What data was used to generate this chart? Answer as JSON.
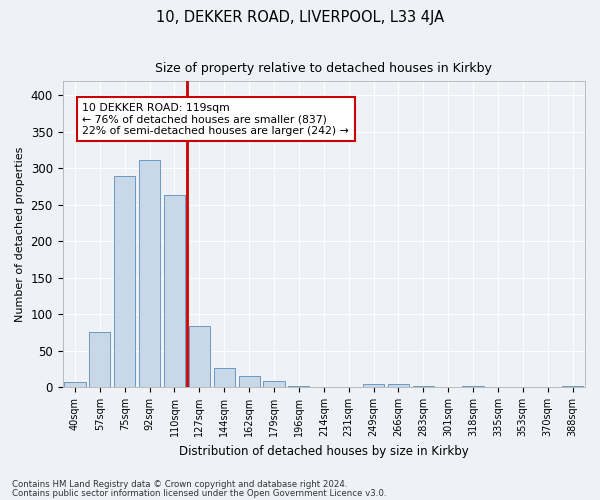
{
  "title": "10, DEKKER ROAD, LIVERPOOL, L33 4JA",
  "subtitle": "Size of property relative to detached houses in Kirkby",
  "xlabel": "Distribution of detached houses by size in Kirkby",
  "ylabel": "Number of detached properties",
  "bin_labels": [
    "40sqm",
    "57sqm",
    "75sqm",
    "92sqm",
    "110sqm",
    "127sqm",
    "144sqm",
    "162sqm",
    "179sqm",
    "196sqm",
    "214sqm",
    "231sqm",
    "249sqm",
    "266sqm",
    "283sqm",
    "301sqm",
    "318sqm",
    "335sqm",
    "353sqm",
    "370sqm",
    "388sqm"
  ],
  "bar_heights": [
    7,
    75,
    290,
    311,
    263,
    84,
    26,
    15,
    9,
    1,
    0,
    0,
    4,
    4,
    1,
    0,
    1,
    0,
    0,
    0,
    1
  ],
  "bar_color": "#c8d8e8",
  "bar_edge_color": "#5b8db8",
  "vline_color": "#cc0000",
  "vline_x": 4.5,
  "annotation_box_color": "#ffffff",
  "annotation_box_edge": "#cc0000",
  "property_label": "10 DEKKER ROAD: 119sqm",
  "annotation_line1": "← 76% of detached houses are smaller (837)",
  "annotation_line2": "22% of semi-detached houses are larger (242) →",
  "footer1": "Contains HM Land Registry data © Crown copyright and database right 2024.",
  "footer2": "Contains public sector information licensed under the Open Government Licence v3.0.",
  "ylim": [
    0,
    420
  ],
  "yticks": [
    0,
    50,
    100,
    150,
    200,
    250,
    300,
    350,
    400
  ],
  "background_color": "#eef2f7",
  "grid_color": "#ffffff"
}
